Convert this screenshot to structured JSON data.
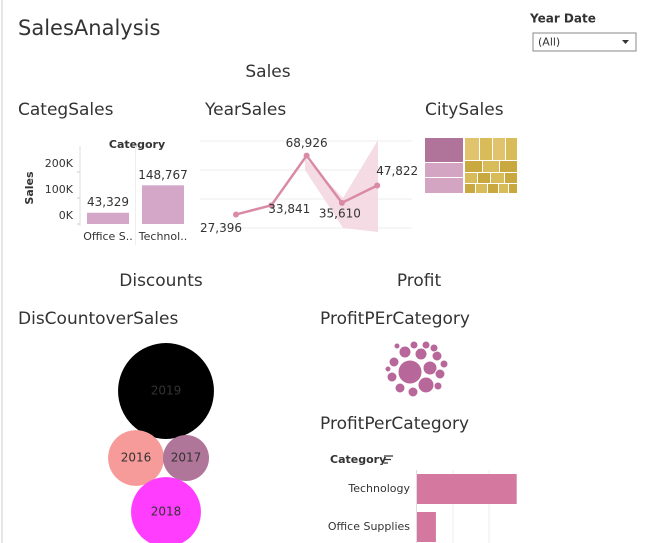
{
  "header": {
    "title": "SalesAnalysis",
    "filter": {
      "label": "Year Date",
      "value": "(All)"
    },
    "sections": [
      "Sales",
      "Discounts",
      "Profit"
    ]
  },
  "chart_data": [
    {
      "type": "bar",
      "title": "CategSales",
      "legend_title": "Category",
      "y_label": "Sales",
      "categories": [
        "Office S..",
        "Technol.."
      ],
      "values": [
        43329,
        148767
      ],
      "value_labels": [
        "43,329",
        "148,767"
      ],
      "color": "#d4a6c8",
      "ylim": [
        0,
        300000
      ],
      "yticks": [
        {
          "value": 0,
          "label": "0K"
        },
        {
          "value": 100000,
          "label": "100K"
        },
        {
          "value": 200000,
          "label": "200K"
        }
      ]
    },
    {
      "type": "line",
      "title": "YearSales",
      "categories": [
        null,
        null,
        null,
        null,
        null
      ],
      "values": [
        27396,
        33841,
        68926,
        35610,
        47822
      ],
      "value_labels": [
        "27,396",
        "33,841",
        "68,926",
        "35,610",
        "47,822"
      ],
      "color": "#d98aa6",
      "ylim": [
        15000,
        80000
      ]
    },
    {
      "type": "treemap",
      "title": "CitySales"
    },
    {
      "type": "bubble",
      "title": "DisCountoverSales",
      "categories": [
        "2019",
        "2016",
        "2017",
        "2018"
      ],
      "values": [
        2300,
        780,
        530,
        1220
      ],
      "colors": [
        "#000000",
        "#f79a9a",
        "#b07699",
        "#ff3dff"
      ]
    },
    {
      "type": "packed",
      "title": "ProfitPErCategory"
    },
    {
      "type": "hbar",
      "title": "ProfitPerCategory",
      "legend_title": "Category",
      "categories": [
        "Technology",
        "Office Supplies"
      ],
      "values": [
        145000,
        27500
      ],
      "color": "#d4789f",
      "xlim": [
        0,
        160000
      ]
    }
  ]
}
